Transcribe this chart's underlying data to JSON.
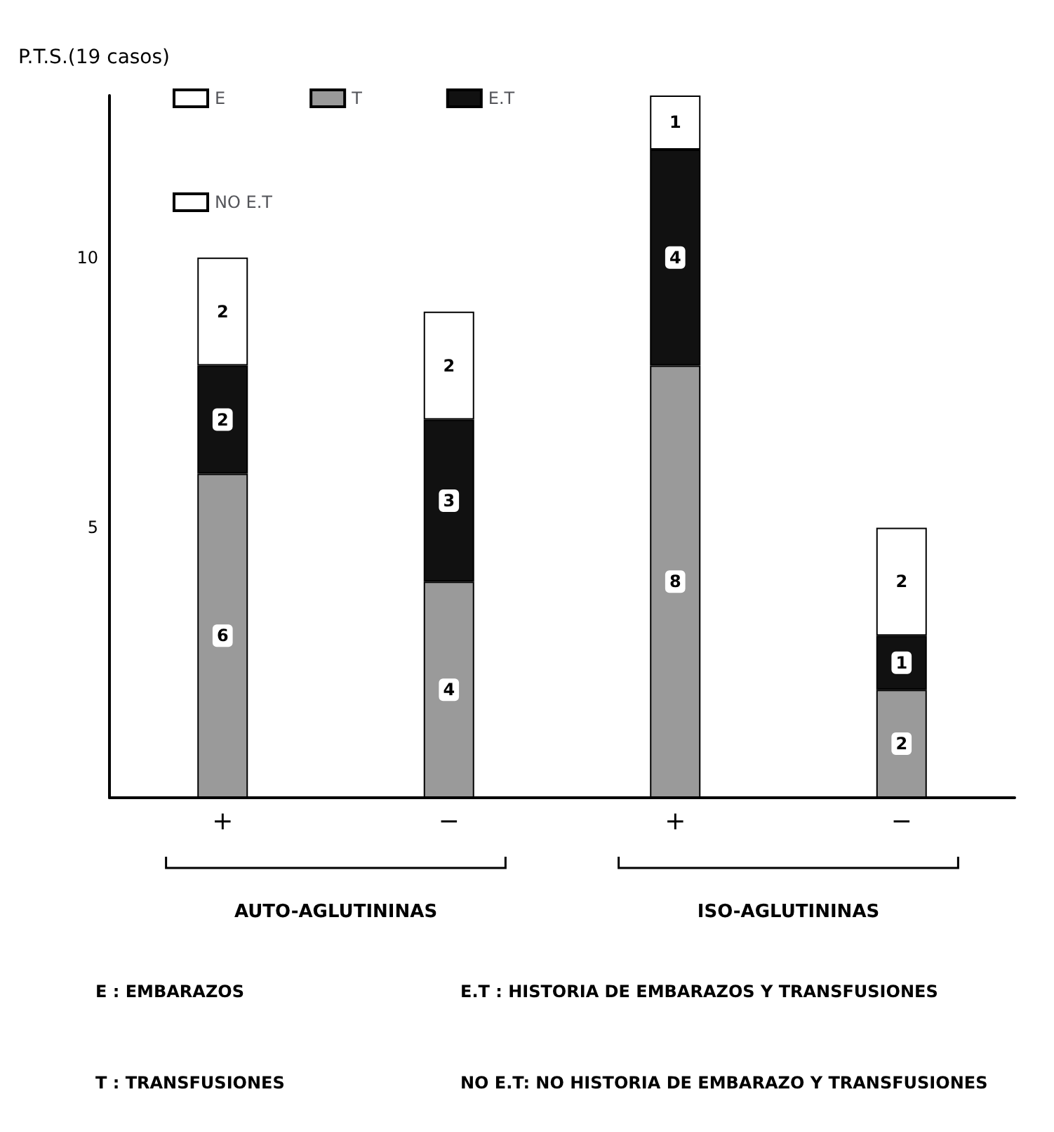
{
  "chart_data": {
    "type": "bar",
    "stacked": true,
    "ylabel": "P.T.S.(19 casos)",
    "categories": [
      "+",
      "−",
      "+",
      "−"
    ],
    "series": [
      {
        "name": "E",
        "values": [
          null,
          null,
          null,
          null
        ]
      },
      {
        "name": "T",
        "color": "#9a9a9a",
        "values": [
          6,
          4,
          8,
          2
        ]
      },
      {
        "name": "E.T",
        "color": "#111111",
        "values": [
          2,
          3,
          4,
          1
        ]
      },
      {
        "name": "NO E.T",
        "color": "#ffffff",
        "values": [
          2,
          2,
          1,
          2
        ]
      }
    ],
    "ylim": [
      0,
      13
    ],
    "yticks": [
      5,
      10
    ],
    "grid": false,
    "legend": "top left",
    "data_labels": true,
    "annotations": [
      "AUTO-AGLUTININAS",
      "ISO-AGLUTININAS",
      "E : EMBARAZOS",
      "E.T : HISTORIA DE EMBARAZOS Y TRANSFUSIONES",
      "T : TRANSFUSIONES",
      "NO E.T: NO HISTORIA DE EMBARAZO Y TRANSFUSIONES"
    ]
  }
}
